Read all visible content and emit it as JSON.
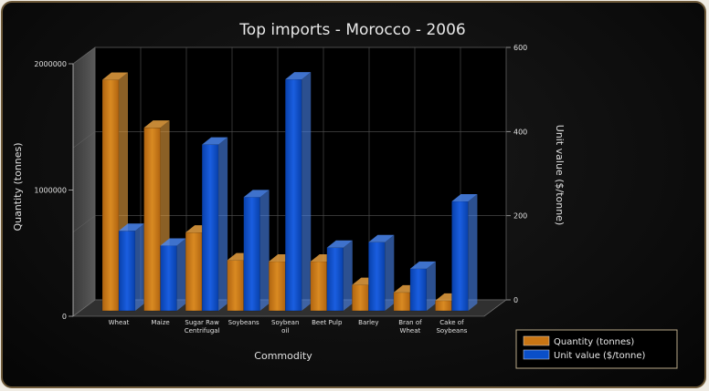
{
  "chart_data": {
    "type": "bar",
    "title": "Top imports - Morocco - 2006",
    "xlabel": "Commodity",
    "ylabel_left": "Quantity (tonnes)",
    "ylabel_right": "Unit value ($/tonne)",
    "categories": [
      [
        "Wheat"
      ],
      [
        "Maize"
      ],
      [
        "Sugar Raw",
        "Centrifugal"
      ],
      [
        "Soybeans"
      ],
      [
        "Soybean",
        "oil"
      ],
      [
        "Beet Pulp"
      ],
      [
        "Barley"
      ],
      [
        "Bran of",
        "Wheat"
      ],
      [
        "Cake of",
        "Soybeans"
      ]
    ],
    "left_axis": {
      "min": 0,
      "max": 2000000,
      "ticks": [
        "0",
        "1000000",
        "2000000"
      ]
    },
    "right_axis": {
      "min": 0,
      "max": 600,
      "ticks": [
        "0",
        "200",
        "400",
        "600"
      ]
    },
    "series": [
      {
        "name": "Quantity (tonnes)",
        "axis": "left",
        "color": "#c87514",
        "values": [
          1830000,
          1450000,
          620000,
          400000,
          390000,
          390000,
          205000,
          145000,
          80000
        ]
      },
      {
        "name": "Unit value ($/tonne)",
        "axis": "right",
        "color": "#0a4fc8",
        "values": [
          190,
          155,
          395,
          270,
          550,
          150,
          163,
          100,
          260
        ]
      }
    ],
    "grid": true,
    "legend_position": "bottom-right"
  }
}
